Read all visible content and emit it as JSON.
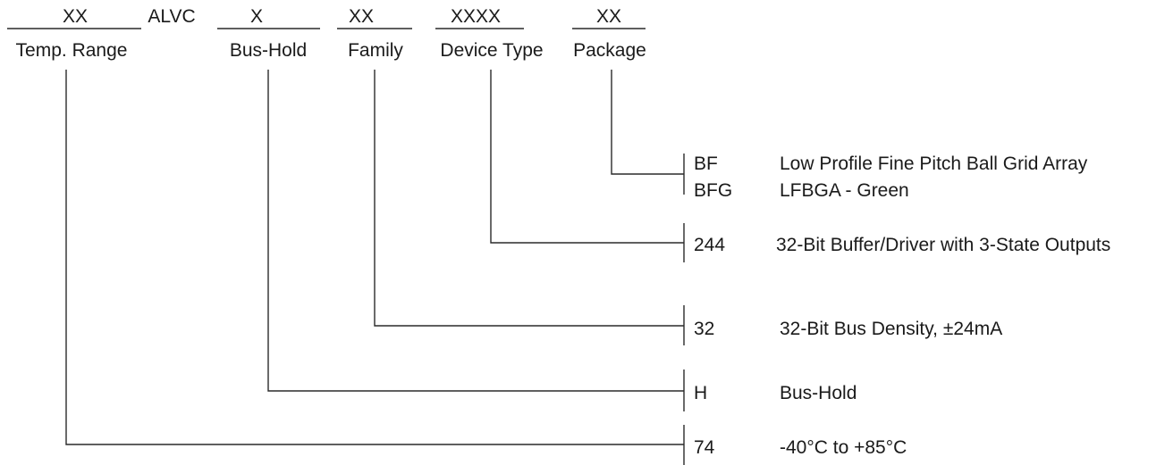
{
  "header": {
    "fields": [
      {
        "code": "XX",
        "label": "Temp. Range"
      },
      {
        "code": "ALVC",
        "label": ""
      },
      {
        "code": "X",
        "label": "Bus-Hold"
      },
      {
        "code": "XX",
        "label": "Family"
      },
      {
        "code": "XXXX",
        "label": "Device Type"
      },
      {
        "code": "XX",
        "label": "Package"
      }
    ]
  },
  "options": {
    "package": [
      {
        "code": "BF",
        "description": "Low Profile Fine Pitch Ball Grid Array"
      },
      {
        "code": "BFG",
        "description": "LFBGA - Green"
      }
    ],
    "device_type": [
      {
        "code": "244",
        "description": "32-Bit Buffer/Driver with 3-State Outputs"
      }
    ],
    "family": [
      {
        "code": "32",
        "description": "32-Bit Bus Density, ±24mA"
      }
    ],
    "bus_hold": [
      {
        "code": "H",
        "description": "Bus-Hold"
      }
    ],
    "temp_range": [
      {
        "code": "74",
        "description": "-40°C to +85°C"
      }
    ]
  }
}
